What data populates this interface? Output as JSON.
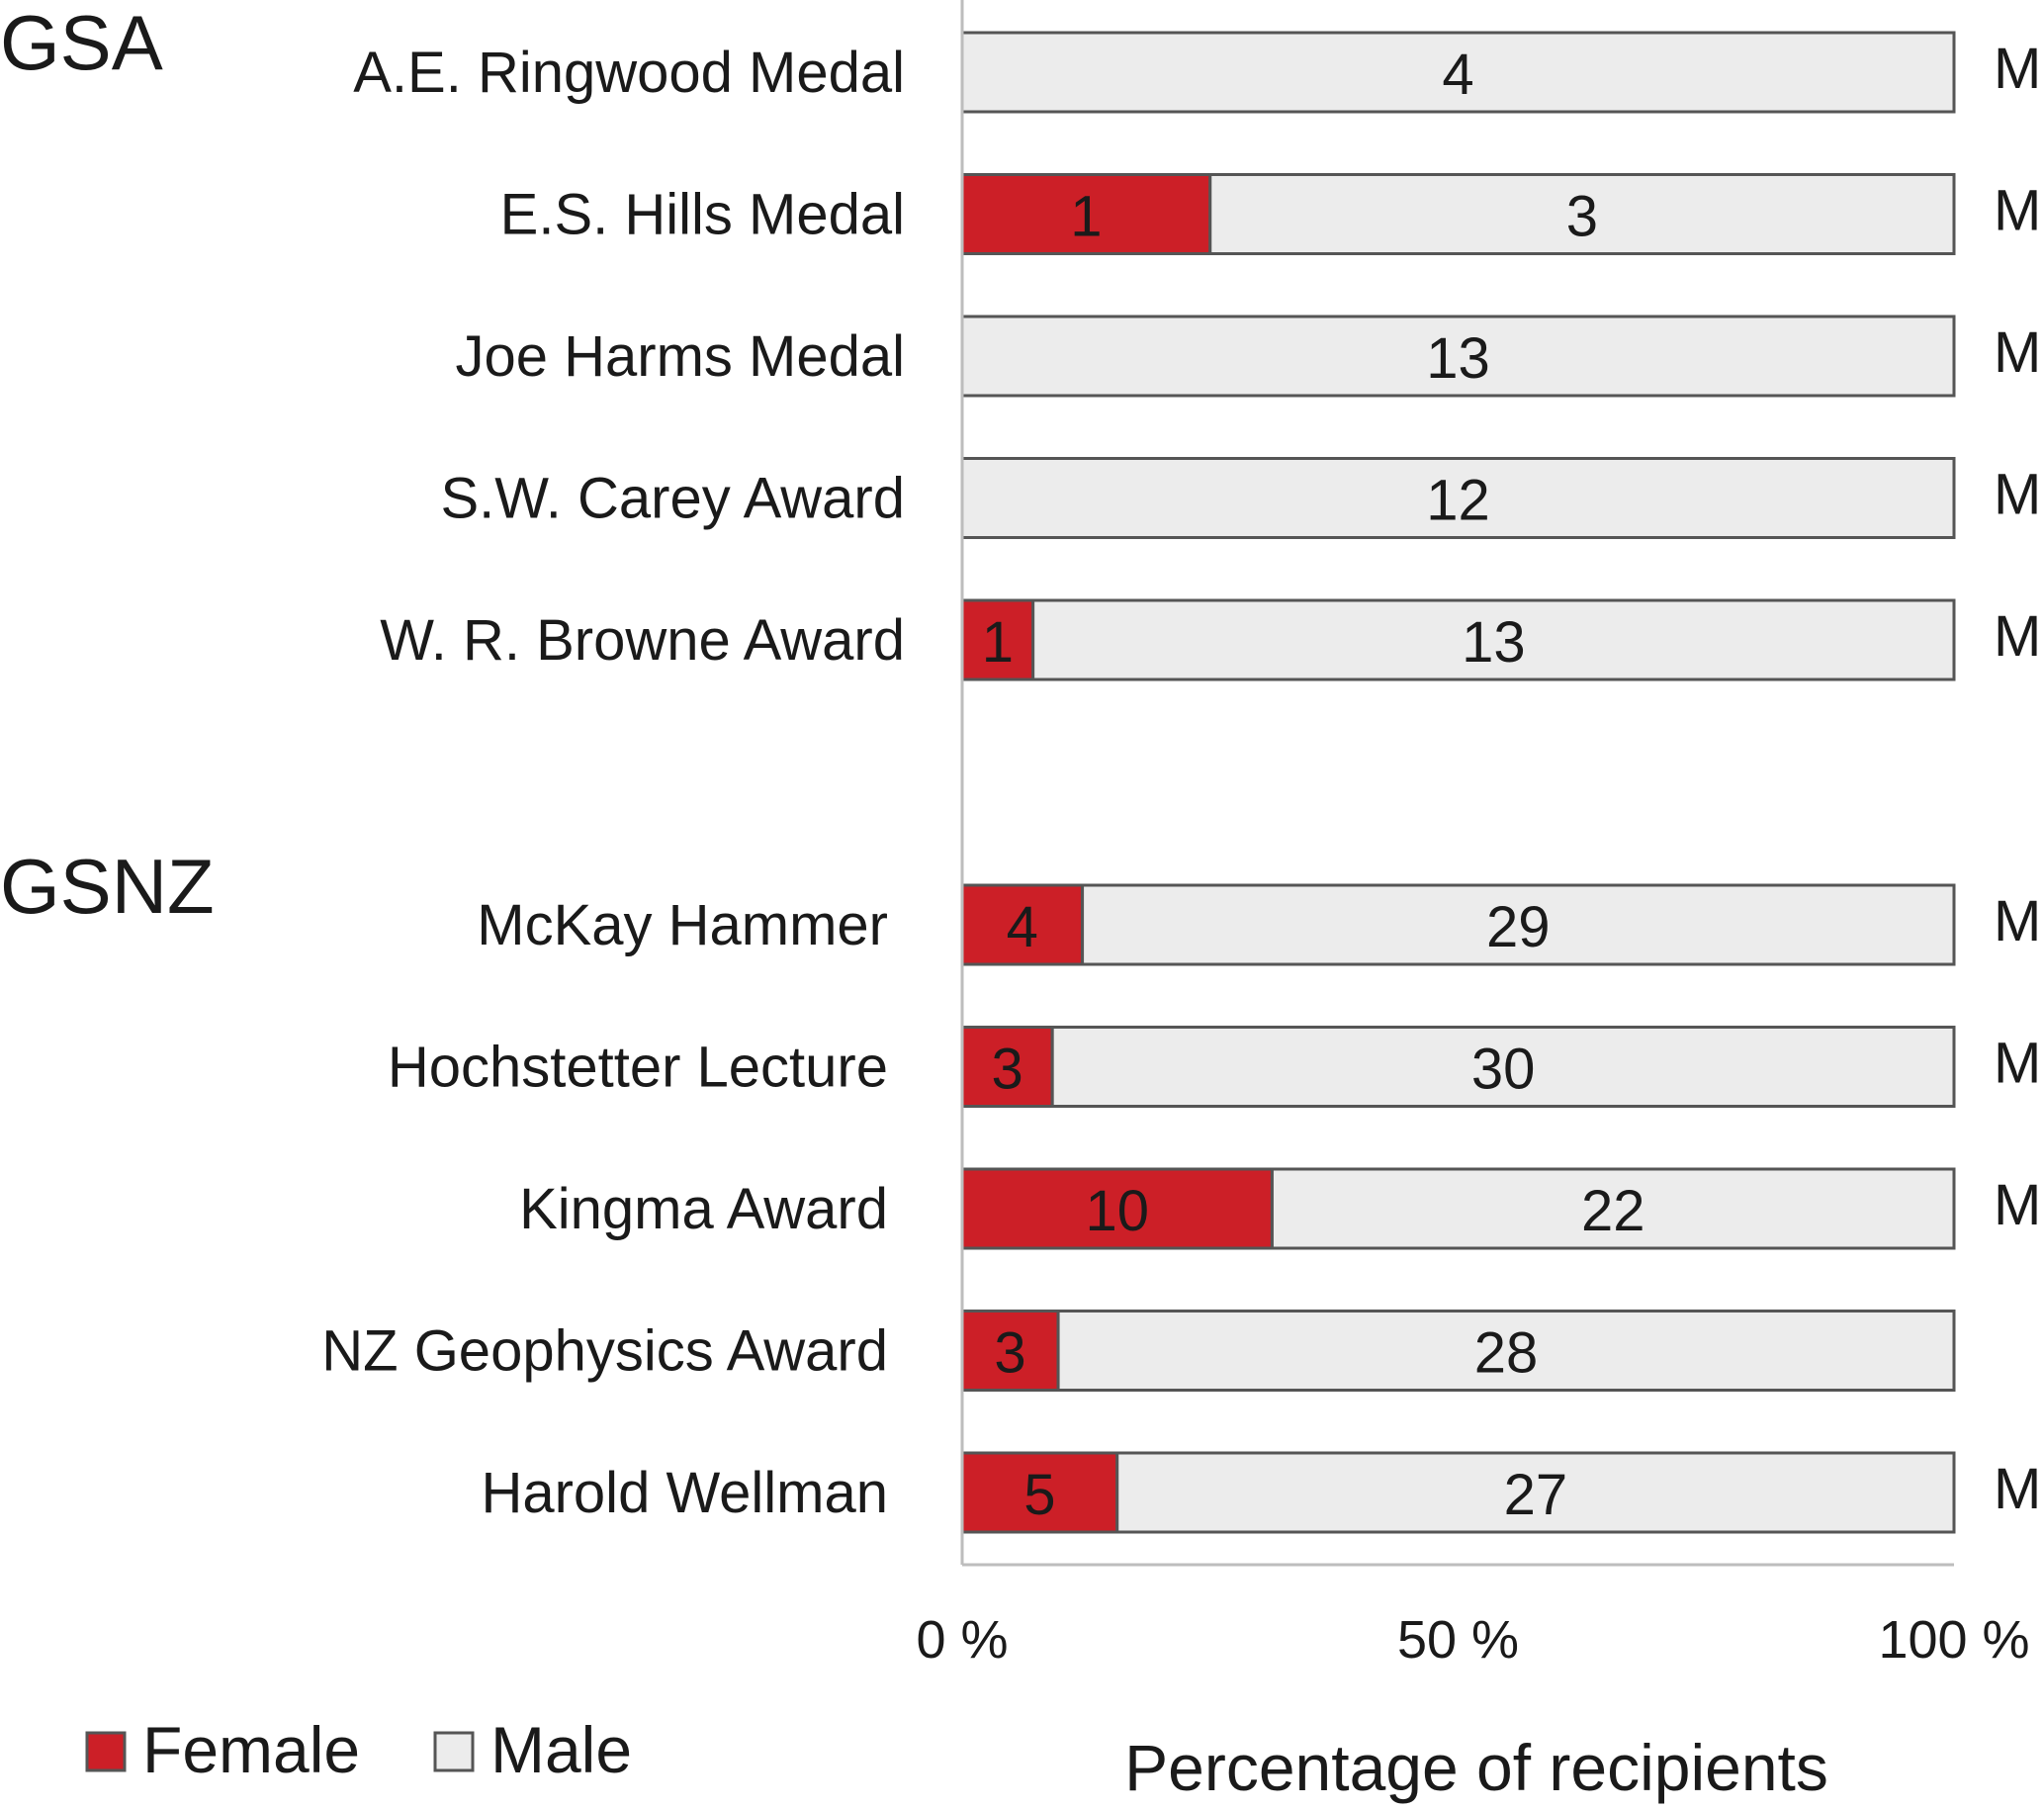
{
  "chart_data": {
    "type": "bar",
    "stacked": "percent",
    "orientation": "horizontal",
    "groups": [
      {
        "name": "GSA",
        "categories": [
          "A.E. Ringwood Medal",
          "E.S. Hills Medal",
          "Joe Harms Medal",
          "S.W. Carey Award",
          "W. R. Browne Award"
        ],
        "female": [
          0,
          1,
          0,
          0,
          1
        ],
        "male": [
          4,
          3,
          13,
          12,
          13
        ],
        "right_labels": [
          "M",
          "M",
          "M",
          "M",
          "M"
        ]
      },
      {
        "name": "GSNZ",
        "categories": [
          "McKay Hammer",
          "Hochstetter Lecture",
          "Kingma Award",
          "NZ Geophysics Award",
          "Harold Wellman"
        ],
        "female": [
          4,
          3,
          10,
          3,
          5
        ],
        "male": [
          29,
          30,
          22,
          28,
          27
        ],
        "right_labels": [
          "M",
          "M",
          "M",
          "",
          "M"
        ]
      }
    ],
    "series": [
      {
        "name": "Female",
        "color": "#cc1f27"
      },
      {
        "name": "Male",
        "color": "#ececec"
      }
    ],
    "xlabel": "Percentage of recipients",
    "ylabel": "",
    "xlim": [
      0,
      100
    ],
    "xticks": [
      "0 %",
      "50 %",
      "100 %"
    ],
    "legend": "bottom-left",
    "grid": false,
    "bar_outline_color": "#555555",
    "axis_color": "#bdbdbd"
  }
}
